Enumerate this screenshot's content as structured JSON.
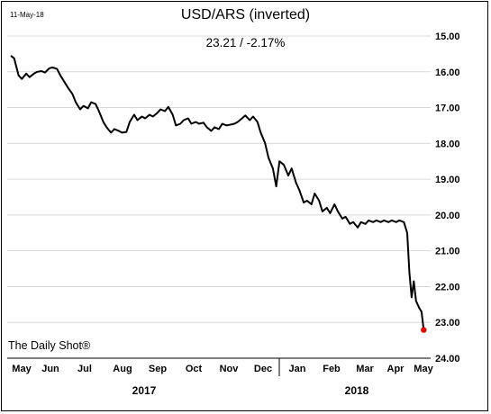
{
  "header": {
    "date_stamp": "11-May-18",
    "title": "USD/ARS (inverted)",
    "subtitle": "23.21  /  -2.17%"
  },
  "source": "The Daily Shot®",
  "colors": {
    "line": "#000000",
    "last_point": "#e00000",
    "grid": "#d9d9d9"
  },
  "chart_data": {
    "type": "line",
    "title": "USD/ARS (inverted)",
    "y_inverted": true,
    "ylim": [
      15.0,
      24.0
    ],
    "y_ticks": [
      "15.00",
      "16.00",
      "17.00",
      "18.00",
      "19.00",
      "20.00",
      "21.00",
      "22.00",
      "23.00",
      "24.00"
    ],
    "x_ticks": [
      "May",
      "Jun",
      "Jul",
      "Aug",
      "Sep",
      "Oct",
      "Nov",
      "Dec",
      "Jan",
      "Feb",
      "Mar",
      "Apr",
      "May"
    ],
    "years": [
      "2017",
      "2018"
    ],
    "grid": "horizontal",
    "last_value": 23.21,
    "series": [
      {
        "values": [
          [
            "2017-05-01",
            15.55
          ],
          [
            "2017-05-04",
            15.62
          ],
          [
            "2017-05-08",
            16.1
          ],
          [
            "2017-05-11",
            16.2
          ],
          [
            "2017-05-15",
            16.05
          ],
          [
            "2017-05-18",
            16.15
          ],
          [
            "2017-05-22",
            16.05
          ],
          [
            "2017-05-25",
            16.0
          ],
          [
            "2017-05-29",
            15.98
          ],
          [
            "2017-06-01",
            16.02
          ],
          [
            "2017-06-05",
            15.9
          ],
          [
            "2017-06-08",
            15.88
          ],
          [
            "2017-06-12",
            15.92
          ],
          [
            "2017-06-15",
            16.1
          ],
          [
            "2017-06-19",
            16.3
          ],
          [
            "2017-06-22",
            16.45
          ],
          [
            "2017-06-26",
            16.62
          ],
          [
            "2017-06-29",
            16.85
          ],
          [
            "2017-07-03",
            17.05
          ],
          [
            "2017-07-06",
            16.95
          ],
          [
            "2017-07-10",
            17.02
          ],
          [
            "2017-07-13",
            16.85
          ],
          [
            "2017-07-17",
            16.9
          ],
          [
            "2017-07-20",
            17.1
          ],
          [
            "2017-07-24",
            17.4
          ],
          [
            "2017-07-27",
            17.55
          ],
          [
            "2017-07-31",
            17.7
          ],
          [
            "2017-08-03",
            17.6
          ],
          [
            "2017-08-07",
            17.65
          ],
          [
            "2017-08-10",
            17.7
          ],
          [
            "2017-08-14",
            17.68
          ],
          [
            "2017-08-17",
            17.4
          ],
          [
            "2017-08-21",
            17.2
          ],
          [
            "2017-08-24",
            17.35
          ],
          [
            "2017-08-28",
            17.25
          ],
          [
            "2017-08-31",
            17.3
          ],
          [
            "2017-09-04",
            17.2
          ],
          [
            "2017-09-07",
            17.25
          ],
          [
            "2017-09-11",
            17.15
          ],
          [
            "2017-09-14",
            17.05
          ],
          [
            "2017-09-18",
            17.1
          ],
          [
            "2017-09-21",
            16.98
          ],
          [
            "2017-09-25",
            17.2
          ],
          [
            "2017-09-28",
            17.5
          ],
          [
            "2017-10-02",
            17.45
          ],
          [
            "2017-10-05",
            17.35
          ],
          [
            "2017-10-09",
            17.3
          ],
          [
            "2017-10-12",
            17.45
          ],
          [
            "2017-10-16",
            17.4
          ],
          [
            "2017-10-19",
            17.45
          ],
          [
            "2017-10-23",
            17.42
          ],
          [
            "2017-10-26",
            17.55
          ],
          [
            "2017-10-30",
            17.65
          ],
          [
            "2017-11-02",
            17.55
          ],
          [
            "2017-11-06",
            17.6
          ],
          [
            "2017-11-09",
            17.45
          ],
          [
            "2017-11-13",
            17.5
          ],
          [
            "2017-11-16",
            17.48
          ],
          [
            "2017-11-20",
            17.45
          ],
          [
            "2017-11-23",
            17.4
          ],
          [
            "2017-11-27",
            17.3
          ],
          [
            "2017-11-30",
            17.22
          ],
          [
            "2017-12-04",
            17.35
          ],
          [
            "2017-12-07",
            17.25
          ],
          [
            "2017-12-11",
            17.4
          ],
          [
            "2017-12-14",
            17.7
          ],
          [
            "2017-12-18",
            18.0
          ],
          [
            "2017-12-21",
            18.4
          ],
          [
            "2017-12-25",
            18.7
          ],
          [
            "2017-12-28",
            19.2
          ],
          [
            "2017-12-31",
            18.5
          ],
          [
            "2018-01-04",
            18.6
          ],
          [
            "2018-01-08",
            18.9
          ],
          [
            "2018-01-11",
            18.7
          ],
          [
            "2018-01-15",
            19.1
          ],
          [
            "2018-01-18",
            19.3
          ],
          [
            "2018-01-22",
            19.65
          ],
          [
            "2018-01-25",
            19.6
          ],
          [
            "2018-01-29",
            19.7
          ],
          [
            "2018-02-01",
            19.4
          ],
          [
            "2018-02-05",
            19.6
          ],
          [
            "2018-02-08",
            19.9
          ],
          [
            "2018-02-12",
            19.8
          ],
          [
            "2018-02-15",
            19.95
          ],
          [
            "2018-02-19",
            19.7
          ],
          [
            "2018-02-22",
            19.9
          ],
          [
            "2018-02-26",
            20.1
          ],
          [
            "2018-03-01",
            20.05
          ],
          [
            "2018-03-05",
            20.25
          ],
          [
            "2018-03-08",
            20.2
          ],
          [
            "2018-03-12",
            20.35
          ],
          [
            "2018-03-15",
            20.2
          ],
          [
            "2018-03-19",
            20.25
          ],
          [
            "2018-03-22",
            20.15
          ],
          [
            "2018-03-26",
            20.2
          ],
          [
            "2018-03-29",
            20.15
          ],
          [
            "2018-04-02",
            20.2
          ],
          [
            "2018-04-05",
            20.15
          ],
          [
            "2018-04-09",
            20.2
          ],
          [
            "2018-04-12",
            20.15
          ],
          [
            "2018-04-16",
            20.2
          ],
          [
            "2018-04-19",
            20.15
          ],
          [
            "2018-04-23",
            20.2
          ],
          [
            "2018-04-26",
            20.5
          ],
          [
            "2018-04-28",
            21.6
          ],
          [
            "2018-04-30",
            22.3
          ],
          [
            "2018-05-02",
            21.85
          ],
          [
            "2018-05-04",
            22.4
          ],
          [
            "2018-05-07",
            22.6
          ],
          [
            "2018-05-09",
            22.7
          ],
          [
            "2018-05-11",
            23.21
          ]
        ]
      }
    ]
  }
}
